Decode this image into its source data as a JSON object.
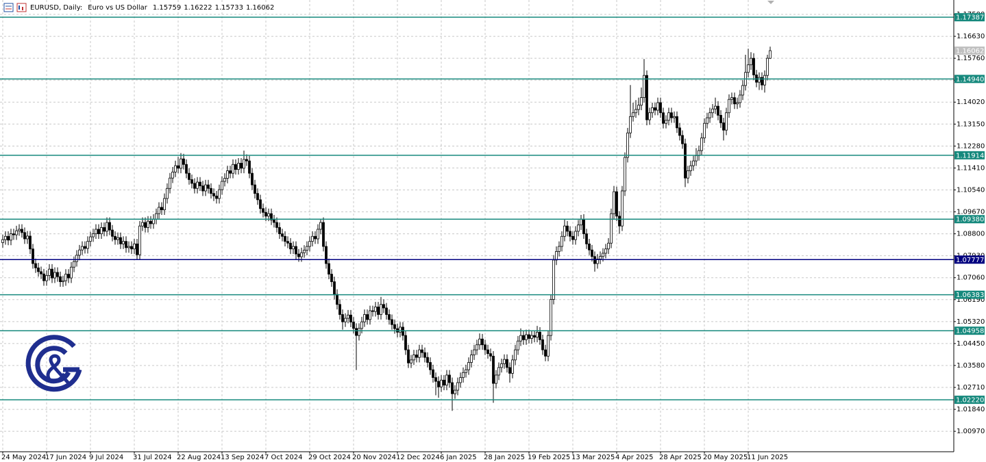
{
  "chart_data": {
    "type": "candlestick",
    "title": "EURUSD, Daily:",
    "subtitle": "Euro vs US Dollar",
    "header_values": [
      1.15759,
      1.16222,
      1.15733,
      1.16062
    ],
    "open": [
      1.0845,
      1.0857,
      1.087,
      1.0855,
      1.088,
      1.0876,
      1.0892,
      1.0898,
      1.0885,
      1.086,
      1.0871,
      1.082,
      1.0762,
      1.0745,
      1.073,
      1.0721,
      1.0694,
      1.0715,
      1.074,
      1.0705,
      1.0727,
      1.071,
      1.069,
      1.0694,
      1.072,
      1.0705,
      1.0748,
      1.077,
      1.0795,
      1.0816,
      1.083,
      1.0822,
      1.085,
      1.0868,
      1.088,
      1.0898,
      1.088,
      1.0905,
      1.089,
      1.0925,
      1.0895,
      1.087,
      1.0857,
      1.0865,
      1.084,
      1.085,
      1.0825,
      1.083,
      1.082,
      1.084,
      1.0797,
      1.0911,
      1.0925,
      1.0905,
      1.093,
      1.092,
      1.0938,
      1.096,
      1.0985,
      1.0975,
      1.102,
      1.106,
      1.1101,
      1.1125,
      1.115,
      1.114,
      1.1177,
      1.1155,
      1.112,
      1.1095,
      1.108,
      1.106,
      1.1085,
      1.107,
      1.105,
      1.1074,
      1.106,
      1.104,
      1.103,
      1.102,
      1.1055,
      1.1088,
      1.11,
      1.113,
      1.112,
      1.1155,
      1.1135,
      1.116,
      1.114,
      1.1175,
      1.1169,
      1.112,
      1.1074,
      1.104,
      1.1015,
      1.098,
      1.0965,
      1.095,
      1.096,
      1.0935,
      1.0925,
      1.0905,
      1.088,
      1.087,
      1.085,
      1.0843,
      1.082,
      1.083,
      1.08,
      1.0789,
      1.0805,
      1.0815,
      1.083,
      1.085,
      1.087,
      1.086,
      1.0898,
      1.0925,
      1.083,
      1.0762,
      1.072,
      1.069,
      1.064,
      1.06,
      1.056,
      1.0531,
      1.0545,
      1.0558,
      1.053,
      1.0505,
      1.0477,
      1.0505,
      1.0531,
      1.056,
      1.054,
      1.0575,
      1.0572,
      1.059,
      1.056,
      1.06,
      1.0586,
      1.056,
      1.054,
      1.052,
      1.0504,
      1.049,
      1.051,
      1.0477,
      1.042,
      1.0368,
      1.038,
      1.04,
      1.039,
      1.042,
      1.0409,
      1.039,
      1.037,
      1.0341,
      1.031,
      1.0295,
      1.0273,
      1.03,
      1.028,
      1.032,
      1.029,
      1.0246,
      1.026,
      1.029,
      1.031,
      1.033,
      1.0341,
      1.037,
      1.04,
      1.042,
      1.044,
      1.0463,
      1.044,
      1.042,
      1.0405,
      1.0395,
      1.0287,
      1.032,
      1.035,
      1.0365,
      1.0382,
      1.035,
      1.0327,
      1.038,
      1.042,
      1.0455,
      1.0477,
      1.046,
      1.048,
      1.0465,
      1.0477,
      1.047,
      1.049,
      1.046,
      1.042,
      1.0395,
      1.0477,
      1.062,
      1.0776,
      1.081,
      1.083,
      1.087,
      1.0911,
      1.089,
      1.087,
      1.0857,
      1.089,
      1.0915,
      1.0938,
      1.088,
      1.084,
      1.0816,
      1.079,
      1.0762,
      1.078,
      1.079,
      1.0803,
      1.082,
      1.0843,
      1.096,
      1.1047,
      1.095,
      1.0911,
      1.105,
      1.1183,
      1.128,
      1.1345,
      1.136,
      1.1373,
      1.139,
      1.142,
      1.1508,
      1.1332,
      1.136,
      1.138,
      1.137,
      1.14,
      1.136,
      1.1318,
      1.133,
      1.136,
      1.134,
      1.1345,
      1.13,
      1.127,
      1.1237,
      1.1101,
      1.113,
      1.115,
      1.1169,
      1.119,
      1.121,
      1.126,
      1.1318,
      1.134,
      1.136,
      1.1375,
      1.1386,
      1.135,
      1.132,
      1.1291,
      1.136,
      1.1413,
      1.142,
      1.1395,
      1.14,
      1.143,
      1.1468,
      1.152,
      1.155,
      1.1576,
      1.151,
      1.1481,
      1.15,
      1.147,
      1.1508,
      1.15759
    ],
    "high": [
      1.0877,
      1.089,
      1.089,
      1.09,
      1.09,
      1.0912,
      1.0918,
      1.0918,
      1.0905,
      1.0891,
      1.0891,
      1.084,
      1.0782,
      1.0765,
      1.075,
      1.0741,
      1.0735,
      1.076,
      1.076,
      1.0747,
      1.0747,
      1.073,
      1.0714,
      1.074,
      1.074,
      1.0768,
      1.079,
      1.0815,
      1.0836,
      1.085,
      1.085,
      1.087,
      1.0888,
      1.09,
      1.0918,
      1.0918,
      1.0925,
      1.0925,
      1.0945,
      1.0945,
      1.0915,
      1.089,
      1.0885,
      1.0885,
      1.087,
      1.087,
      1.085,
      1.085,
      1.086,
      1.086,
      1.0931,
      1.0945,
      1.0945,
      1.095,
      1.095,
      1.0958,
      1.098,
      1.1005,
      1.1005,
      1.104,
      1.108,
      1.1121,
      1.1145,
      1.117,
      1.1185,
      1.12,
      1.1197,
      1.1175,
      1.114,
      1.1115,
      1.11,
      1.1105,
      1.1105,
      1.109,
      1.1094,
      1.1094,
      1.108,
      1.106,
      1.105,
      1.1075,
      1.1108,
      1.112,
      1.115,
      1.115,
      1.1175,
      1.1175,
      1.118,
      1.118,
      1.121,
      1.1195,
      1.1189,
      1.114,
      1.1094,
      1.106,
      1.1035,
      1.1,
      1.0985,
      1.098,
      1.098,
      1.0955,
      1.0945,
      1.0925,
      1.09,
      1.089,
      1.087,
      1.0863,
      1.085,
      1.085,
      1.082,
      1.0825,
      1.0835,
      1.085,
      1.087,
      1.089,
      1.089,
      1.0918,
      1.094,
      1.0945,
      1.085,
      1.0782,
      1.074,
      1.071,
      1.066,
      1.062,
      1.058,
      1.0565,
      1.0578,
      1.0578,
      1.055,
      1.0525,
      1.0525,
      1.0551,
      1.058,
      1.058,
      1.0595,
      1.0595,
      1.061,
      1.061,
      1.063,
      1.062,
      1.0606,
      1.058,
      1.056,
      1.054,
      1.0524,
      1.053,
      1.053,
      1.0497,
      1.044,
      1.04,
      1.042,
      1.042,
      1.044,
      1.044,
      1.0429,
      1.041,
      1.039,
      1.0361,
      1.033,
      1.0315,
      1.032,
      1.032,
      1.034,
      1.034,
      1.031,
      1.028,
      1.031,
      1.033,
      1.035,
      1.0361,
      1.039,
      1.042,
      1.044,
      1.046,
      1.0485,
      1.0483,
      1.046,
      1.044,
      1.0425,
      1.0415,
      1.034,
      1.037,
      1.0385,
      1.0402,
      1.0402,
      1.037,
      1.04,
      1.044,
      1.0475,
      1.0505,
      1.0497,
      1.05,
      1.05,
      1.0497,
      1.0497,
      1.0515,
      1.051,
      1.048,
      1.044,
      1.0497,
      1.064,
      1.0796,
      1.083,
      1.085,
      1.089,
      1.094,
      1.0931,
      1.091,
      1.089,
      1.091,
      1.0935,
      1.0955,
      1.0958,
      1.09,
      1.086,
      1.0836,
      1.081,
      1.08,
      1.081,
      1.0823,
      1.084,
      1.0863,
      1.098,
      1.107,
      1.1067,
      1.097,
      1.107,
      1.1203,
      1.13,
      1.147,
      1.14,
      1.141,
      1.142,
      1.146,
      1.1573,
      1.1528,
      1.138,
      1.14,
      1.14,
      1.142,
      1.142,
      1.138,
      1.135,
      1.138,
      1.138,
      1.1365,
      1.1365,
      1.132,
      1.129,
      1.1257,
      1.115,
      1.117,
      1.1189,
      1.122,
      1.123,
      1.128,
      1.1338,
      1.136,
      1.138,
      1.1395,
      1.142,
      1.1406,
      1.137,
      1.134,
      1.138,
      1.1433,
      1.144,
      1.144,
      1.142,
      1.145,
      1.149,
      1.159,
      1.1614,
      1.16,
      1.1596,
      1.153,
      1.152,
      1.152,
      1.1528,
      1.159,
      1.16222
    ],
    "low": [
      1.0825,
      1.0837,
      1.0835,
      1.0835,
      1.0856,
      1.0856,
      1.0872,
      1.0865,
      1.084,
      1.084,
      1.08,
      1.0742,
      1.0725,
      1.071,
      1.0701,
      1.0674,
      1.0674,
      1.0695,
      1.0685,
      1.0685,
      1.069,
      1.067,
      1.067,
      1.0674,
      1.0685,
      1.0685,
      1.0728,
      1.075,
      1.0775,
      1.0796,
      1.0802,
      1.0802,
      1.083,
      1.0848,
      1.086,
      1.086,
      1.086,
      1.087,
      1.087,
      1.0875,
      1.085,
      1.0837,
      1.0837,
      1.082,
      1.082,
      1.0805,
      1.0805,
      1.08,
      1.08,
      1.0777,
      1.0777,
      1.0891,
      1.0885,
      1.0885,
      1.09,
      1.09,
      1.0918,
      1.094,
      1.0955,
      1.0955,
      1.1,
      1.104,
      1.1081,
      1.1105,
      1.112,
      1.112,
      1.1135,
      1.11,
      1.1075,
      1.106,
      1.104,
      1.104,
      1.105,
      1.103,
      1.103,
      1.104,
      1.102,
      1.101,
      1.1,
      1.1,
      1.1035,
      1.1068,
      1.108,
      1.11,
      1.11,
      1.1115,
      1.1115,
      1.112,
      1.112,
      1.1149,
      1.11,
      1.1054,
      1.102,
      1.0995,
      1.096,
      1.0945,
      1.093,
      1.093,
      1.0915,
      1.0905,
      1.0885,
      1.086,
      1.085,
      1.083,
      1.0823,
      1.08,
      1.08,
      1.078,
      1.0769,
      1.0769,
      1.0785,
      1.0795,
      1.081,
      1.083,
      1.084,
      1.084,
      1.0878,
      1.081,
      1.0742,
      1.07,
      1.067,
      1.062,
      1.058,
      1.054,
      1.05,
      1.0511,
      1.0525,
      1.051,
      1.0485,
      1.034,
      1.0457,
      1.0485,
      1.0511,
      1.052,
      1.052,
      1.0552,
      1.0552,
      1.054,
      1.054,
      1.0566,
      1.054,
      1.052,
      1.05,
      1.0484,
      1.047,
      1.047,
      1.0457,
      1.04,
      1.0348,
      1.0348,
      1.036,
      1.037,
      1.037,
      1.0389,
      1.037,
      1.035,
      1.0321,
      1.029,
      1.024,
      1.023,
      1.0253,
      1.026,
      1.026,
      1.027,
      1.0178,
      1.0226,
      1.024,
      1.027,
      1.029,
      1.031,
      1.0321,
      1.035,
      1.038,
      1.04,
      1.042,
      1.042,
      1.04,
      1.0385,
      1.0375,
      1.021,
      1.0267,
      1.03,
      1.033,
      1.0345,
      1.033,
      1.029,
      1.0307,
      1.036,
      1.04,
      1.0435,
      1.044,
      1.044,
      1.0445,
      1.0445,
      1.045,
      1.045,
      1.044,
      1.04,
      1.0375,
      1.0375,
      1.0457,
      1.06,
      1.0756,
      1.079,
      1.081,
      1.085,
      1.087,
      1.085,
      1.0837,
      1.0837,
      1.087,
      1.0895,
      1.086,
      1.082,
      1.0796,
      1.077,
      1.073,
      1.0742,
      1.076,
      1.077,
      1.0783,
      1.08,
      1.0823,
      1.094,
      1.093,
      1.088,
      1.0891,
      1.103,
      1.1163,
      1.126,
      1.1325,
      1.134,
      1.135,
      1.137,
      1.14,
      1.131,
      1.1312,
      1.134,
      1.135,
      1.135,
      1.134,
      1.1298,
      1.1298,
      1.131,
      1.132,
      1.132,
      1.128,
      1.125,
      1.1217,
      1.1065,
      1.108,
      1.111,
      1.113,
      1.1149,
      1.117,
      1.119,
      1.124,
      1.1298,
      1.132,
      1.134,
      1.1355,
      1.133,
      1.13,
      1.125,
      1.1271,
      1.134,
      1.1393,
      1.1375,
      1.1375,
      1.138,
      1.141,
      1.1448,
      1.15,
      1.153,
      1.149,
      1.1461,
      1.145,
      1.145,
      1.144,
      1.1488,
      1.15733
    ],
    "close": [
      1.0857,
      1.087,
      1.0855,
      1.088,
      1.0876,
      1.0892,
      1.0898,
      1.0885,
      1.086,
      1.0871,
      1.082,
      1.0762,
      1.0745,
      1.073,
      1.0721,
      1.0694,
      1.0715,
      1.074,
      1.0705,
      1.0727,
      1.071,
      1.069,
      1.0694,
      1.072,
      1.0705,
      1.0748,
      1.077,
      1.0795,
      1.0816,
      1.083,
      1.0822,
      1.085,
      1.0868,
      1.088,
      1.0898,
      1.088,
      1.0905,
      1.089,
      1.0925,
      1.0895,
      1.087,
      1.0857,
      1.0865,
      1.084,
      1.085,
      1.0825,
      1.083,
      1.082,
      1.084,
      1.0797,
      1.0911,
      1.0925,
      1.0905,
      1.093,
      1.092,
      1.0938,
      1.096,
      1.0985,
      1.0975,
      1.102,
      1.106,
      1.1101,
      1.1125,
      1.115,
      1.114,
      1.1177,
      1.1155,
      1.112,
      1.1095,
      1.108,
      1.106,
      1.1085,
      1.107,
      1.105,
      1.1074,
      1.106,
      1.104,
      1.103,
      1.102,
      1.1055,
      1.1088,
      1.11,
      1.113,
      1.112,
      1.1155,
      1.1135,
      1.116,
      1.114,
      1.1175,
      1.1169,
      1.112,
      1.1074,
      1.104,
      1.1015,
      1.098,
      1.0965,
      1.095,
      1.096,
      1.0935,
      1.0925,
      1.0905,
      1.088,
      1.087,
      1.085,
      1.0843,
      1.082,
      1.083,
      1.08,
      1.0789,
      1.0805,
      1.0815,
      1.083,
      1.085,
      1.087,
      1.086,
      1.0898,
      1.0925,
      1.083,
      1.0762,
      1.072,
      1.069,
      1.064,
      1.06,
      1.056,
      1.0531,
      1.0545,
      1.0558,
      1.053,
      1.0505,
      1.0477,
      1.0505,
      1.0531,
      1.056,
      1.054,
      1.0575,
      1.0572,
      1.059,
      1.056,
      1.06,
      1.0586,
      1.056,
      1.054,
      1.052,
      1.0504,
      1.049,
      1.051,
      1.0477,
      1.042,
      1.0368,
      1.038,
      1.04,
      1.039,
      1.042,
      1.0409,
      1.039,
      1.037,
      1.0341,
      1.031,
      1.0295,
      1.0273,
      1.03,
      1.028,
      1.032,
      1.029,
      1.0246,
      1.026,
      1.029,
      1.031,
      1.033,
      1.0341,
      1.037,
      1.04,
      1.042,
      1.044,
      1.0463,
      1.044,
      1.042,
      1.0405,
      1.0395,
      1.0287,
      1.032,
      1.035,
      1.0365,
      1.0382,
      1.035,
      1.0327,
      1.038,
      1.042,
      1.0455,
      1.0477,
      1.046,
      1.048,
      1.0465,
      1.0477,
      1.047,
      1.049,
      1.046,
      1.042,
      1.0395,
      1.0477,
      1.062,
      1.0776,
      1.081,
      1.083,
      1.087,
      1.0911,
      1.089,
      1.087,
      1.0857,
      1.089,
      1.0915,
      1.0938,
      1.088,
      1.084,
      1.0816,
      1.079,
      1.0762,
      1.078,
      1.079,
      1.0803,
      1.082,
      1.0843,
      1.096,
      1.1047,
      1.095,
      1.0911,
      1.105,
      1.1183,
      1.128,
      1.1345,
      1.136,
      1.1373,
      1.139,
      1.142,
      1.1508,
      1.1332,
      1.136,
      1.138,
      1.137,
      1.14,
      1.136,
      1.1318,
      1.133,
      1.136,
      1.134,
      1.1345,
      1.13,
      1.127,
      1.1237,
      1.1101,
      1.113,
      1.115,
      1.1169,
      1.119,
      1.121,
      1.126,
      1.1318,
      1.134,
      1.136,
      1.1375,
      1.1386,
      1.135,
      1.132,
      1.1291,
      1.136,
      1.1413,
      1.142,
      1.1395,
      1.14,
      1.143,
      1.1468,
      1.152,
      1.155,
      1.1576,
      1.151,
      1.1481,
      1.15,
      1.147,
      1.1508,
      1.1576,
      1.16062
    ],
    "xlim": [
      -1,
      347
    ],
    "xticks": [
      {
        "value": 0,
        "label": "24 May 2024"
      },
      {
        "value": 16,
        "label": "17 Jun 2024"
      },
      {
        "value": 32,
        "label": "9 Jul 2024"
      },
      {
        "value": 48,
        "label": "31 Jul 2024"
      },
      {
        "value": 64,
        "label": "22 Aug 2024"
      },
      {
        "value": 80,
        "label": "13 Sep 2024"
      },
      {
        "value": 96,
        "label": "7 Oct 2024"
      },
      {
        "value": 112,
        "label": "29 Oct 2024"
      },
      {
        "value": 128,
        "label": "20 Nov 2024"
      },
      {
        "value": 144,
        "label": "12 Dec 2024"
      },
      {
        "value": 160,
        "label": "6 Jan 2025"
      },
      {
        "value": 176,
        "label": "28 Jan 2025"
      },
      {
        "value": 192,
        "label": "19 Feb 2025"
      },
      {
        "value": 208,
        "label": "13 Mar 2025"
      },
      {
        "value": 224,
        "label": "4 Apr 2025"
      },
      {
        "value": 240,
        "label": "28 Apr 2025"
      },
      {
        "value": 256,
        "label": "20 May 2025"
      },
      {
        "value": 272,
        "label": "11 Jun 2025"
      }
    ],
    "ylim": [
      1.0016,
      1.1807
    ],
    "yticks": [
      {
        "value": 1.175,
        "label": "1.17500"
      },
      {
        "value": 1.1663,
        "label": "1.16630"
      },
      {
        "value": 1.1576,
        "label": "1.15760"
      },
      {
        "value": 1.1489,
        "label": "1.14890"
      },
      {
        "value": 1.1402,
        "label": "1.14020"
      },
      {
        "value": 1.1315,
        "label": "1.13150"
      },
      {
        "value": 1.1228,
        "label": "1.12280"
      },
      {
        "value": 1.1141,
        "label": "1.11410"
      },
      {
        "value": 1.1054,
        "label": "1.10540"
      },
      {
        "value": 1.0967,
        "label": "1.09670"
      },
      {
        "value": 1.088,
        "label": "1.08800"
      },
      {
        "value": 1.0793,
        "label": "1.07930"
      },
      {
        "value": 1.0706,
        "label": "1.07060"
      },
      {
        "value": 1.0619,
        "label": "1.06190"
      },
      {
        "value": 1.0532,
        "label": "1.05320"
      },
      {
        "value": 1.0445,
        "label": "1.04450"
      },
      {
        "value": 1.0358,
        "label": "1.03580"
      },
      {
        "value": 1.0271,
        "label": "1.02710"
      },
      {
        "value": 1.0184,
        "label": "1.01840"
      },
      {
        "value": 1.0097,
        "label": "1.00970"
      }
    ],
    "grid": true,
    "bull_color": "#ffffff",
    "bear_color": "#000000",
    "levels": [
      {
        "value": 1.17387,
        "color": "#16897d"
      },
      {
        "value": 1.1494,
        "label": "1.14940",
        "color": "#16897d"
      },
      {
        "value": 1.11914,
        "color": "#16897d"
      },
      {
        "value": 1.0938,
        "label": "1.09380",
        "color": "#16897d"
      },
      {
        "value": 1.07777,
        "color": "#000080"
      },
      {
        "value": 1.06383,
        "color": "#16897d"
      },
      {
        "value": 1.04958,
        "color": "#16897d"
      },
      {
        "value": 1.0222,
        "label": "1.02220",
        "color": "#16897d"
      }
    ],
    "current_price": {
      "value": 1.16062,
      "color": "#c0c0c0"
    }
  }
}
